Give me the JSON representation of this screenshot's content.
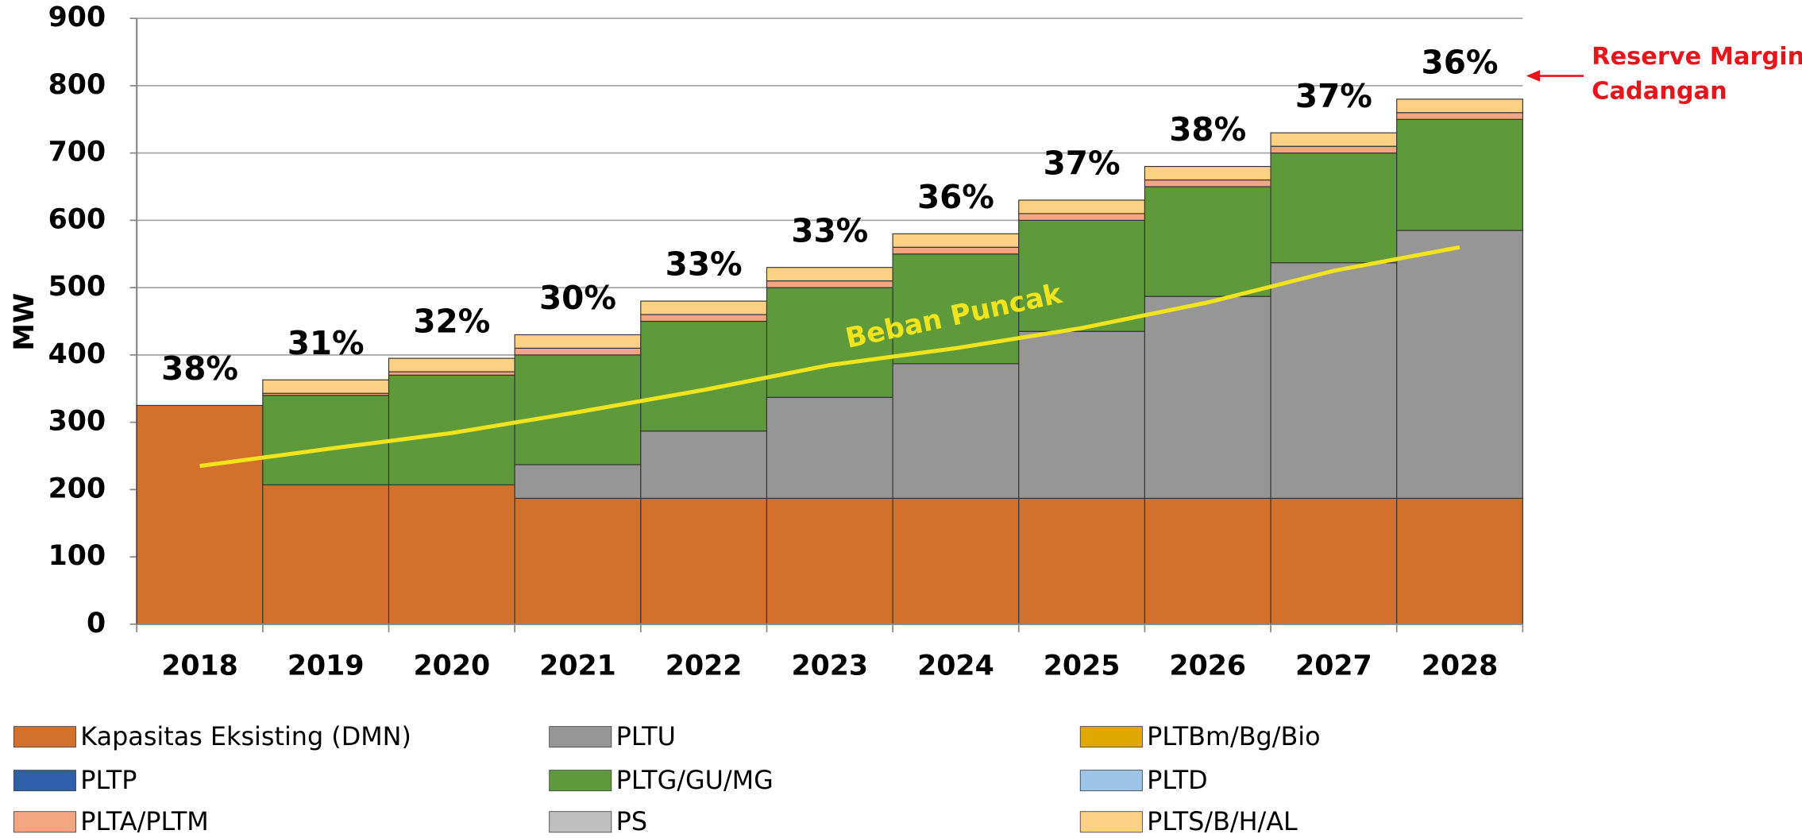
{
  "chart_data": {
    "type": "stacked_bar",
    "y_label": "MW",
    "categories": [
      "2018",
      "2019",
      "2020",
      "2021",
      "2022",
      "2023",
      "2024",
      "2025",
      "2026",
      "2027",
      "2028"
    ],
    "series": [
      {
        "name": "Kapasitas Eksisting (DMN)",
        "color": "#d2702c",
        "values": [
          325,
          207,
          207,
          187,
          187,
          187,
          187,
          187,
          187,
          187,
          187
        ]
      },
      {
        "name": "PLTU",
        "color": "#969696",
        "values": [
          0,
          0,
          0,
          50,
          100,
          150,
          200,
          248,
          300,
          350,
          398
        ]
      },
      {
        "name": "PLTBm/Bg/Bio",
        "color": "#e0a800",
        "values": [
          0,
          0,
          0,
          0,
          0,
          0,
          0,
          0,
          0,
          0,
          0
        ]
      },
      {
        "name": "PLTP",
        "color": "#2f5fa8",
        "values": [
          0,
          0,
          0,
          0,
          0,
          0,
          0,
          0,
          0,
          0,
          0
        ]
      },
      {
        "name": "PLTG/GU/MG",
        "color": "#5e9a3c",
        "values": [
          0,
          133,
          163,
          163,
          163,
          163,
          163,
          165,
          163,
          163,
          165
        ]
      },
      {
        "name": "PLTD",
        "color": "#9dc3e6",
        "values": [
          0,
          0,
          0,
          0,
          0,
          0,
          0,
          0,
          0,
          0,
          0
        ]
      },
      {
        "name": "PLTA/PLTM",
        "color": "#f4a582",
        "values": [
          0,
          3,
          5,
          10,
          10,
          10,
          10,
          10,
          10,
          10,
          10
        ]
      },
      {
        "name": "PS",
        "color": "#c0c0c0",
        "values": [
          0,
          0,
          0,
          0,
          0,
          0,
          0,
          0,
          0,
          0,
          0
        ]
      },
      {
        "name": "PLTS/B/H/AL",
        "color": "#fdd183",
        "values": [
          0,
          20,
          20,
          20,
          20,
          20,
          20,
          20,
          20,
          20,
          20
        ]
      }
    ],
    "line": {
      "name": "Beban Puncak",
      "color": "#f2e41c",
      "values": [
        235,
        260,
        284,
        315,
        348,
        385,
        410,
        440,
        478,
        525,
        560
      ]
    },
    "reserve_margin": {
      "values": [
        38,
        31,
        32,
        30,
        33,
        33,
        36,
        37,
        38,
        37,
        36
      ],
      "value_labels": [
        "38%",
        "31%",
        "32%",
        "30%",
        "33%",
        "33%",
        "36%",
        "37%",
        "38%",
        "37%",
        "36%"
      ]
    },
    "annotation": [
      "Reserve Margin/",
      "Cadangan"
    ],
    "annotation_color": "#e8141b",
    "ylim": [
      0,
      900
    ],
    "yticks": [
      0,
      100,
      200,
      300,
      400,
      500,
      600,
      700,
      800,
      900
    ],
    "grid": true
  }
}
